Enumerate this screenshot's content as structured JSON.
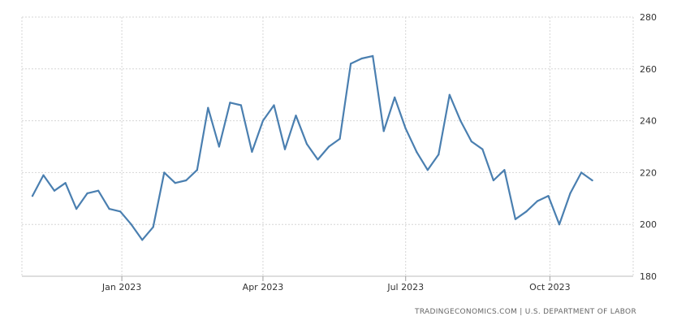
{
  "chart_data": {
    "type": "line",
    "title": "",
    "xlabel": "",
    "ylabel": "",
    "y_ticks": [
      180,
      200,
      220,
      240,
      260,
      280
    ],
    "ylim": [
      180,
      280
    ],
    "x_ticks": [
      "Jan 2023",
      "Apr 2023",
      "Jul 2023",
      "Oct 2023"
    ],
    "x_tick_dates": [
      "2023-01-01",
      "2023-04-01",
      "2023-07-01",
      "2023-10-01"
    ],
    "xlim": [
      "2022-11-05",
      "2023-11-20"
    ],
    "grid": true,
    "y_axis_position": "right",
    "series": [
      {
        "color": "#4a7fb0",
        "points": [
          [
            "2022-11-05",
            211
          ],
          [
            "2022-11-12",
            219
          ],
          [
            "2022-11-19",
            213
          ],
          [
            "2022-11-26",
            216
          ],
          [
            "2022-12-03",
            206
          ],
          [
            "2022-12-10",
            212
          ],
          [
            "2022-12-17",
            213
          ],
          [
            "2022-12-24",
            206
          ],
          [
            "2022-12-31",
            205
          ],
          [
            "2023-01-07",
            200
          ],
          [
            "2023-01-14",
            194
          ],
          [
            "2023-01-21",
            199
          ],
          [
            "2023-01-28",
            220
          ],
          [
            "2023-02-04",
            216
          ],
          [
            "2023-02-11",
            217
          ],
          [
            "2023-02-18",
            221
          ],
          [
            "2023-02-25",
            245
          ],
          [
            "2023-03-04",
            230
          ],
          [
            "2023-03-11",
            247
          ],
          [
            "2023-03-18",
            246
          ],
          [
            "2023-03-25",
            228
          ],
          [
            "2023-04-01",
            240
          ],
          [
            "2023-04-08",
            246
          ],
          [
            "2023-04-15",
            229
          ],
          [
            "2023-04-22",
            242
          ],
          [
            "2023-04-29",
            231
          ],
          [
            "2023-05-06",
            225
          ],
          [
            "2023-05-13",
            230
          ],
          [
            "2023-05-20",
            233
          ],
          [
            "2023-05-27",
            262
          ],
          [
            "2023-06-03",
            264
          ],
          [
            "2023-06-10",
            265
          ],
          [
            "2023-06-17",
            236
          ],
          [
            "2023-06-24",
            249
          ],
          [
            "2023-07-01",
            237
          ],
          [
            "2023-07-08",
            228
          ],
          [
            "2023-07-15",
            221
          ],
          [
            "2023-07-22",
            227
          ],
          [
            "2023-07-29",
            250
          ],
          [
            "2023-08-05",
            240
          ],
          [
            "2023-08-12",
            232
          ],
          [
            "2023-08-19",
            229
          ],
          [
            "2023-08-26",
            217
          ],
          [
            "2023-09-02",
            221
          ],
          [
            "2023-09-09",
            202
          ],
          [
            "2023-09-16",
            205
          ],
          [
            "2023-09-23",
            209
          ],
          [
            "2023-09-30",
            211
          ],
          [
            "2023-10-07",
            200
          ],
          [
            "2023-10-14",
            212
          ],
          [
            "2023-10-21",
            220
          ],
          [
            "2023-10-28",
            217
          ]
        ]
      }
    ],
    "source": "TRADINGECONOMICS.COM  |  U.S. DEPARTMENT OF LABOR"
  }
}
